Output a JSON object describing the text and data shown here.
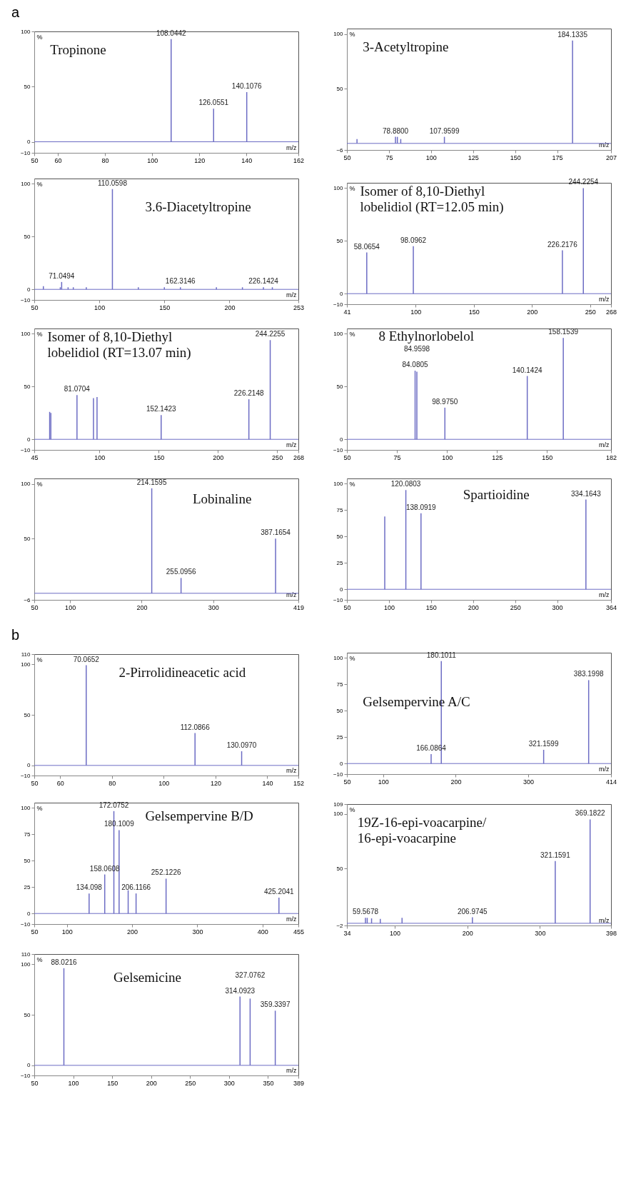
{
  "chart_data": [
    {
      "type": "bar",
      "title": "Tropinone",
      "xlabel": "m/z",
      "ylabel": "%",
      "xlim": [
        50,
        162
      ],
      "xticks": [
        50,
        60,
        80,
        100,
        120,
        140,
        162
      ],
      "ylim": [
        -10,
        100
      ],
      "yticks": [
        -10,
        0,
        50,
        100
      ],
      "x": [
        108.0442,
        126.0551,
        140.1076
      ],
      "series": [
        {
          "color": "#6c6cc4",
          "values": [
            93,
            30,
            45
          ]
        }
      ],
      "ref_lines": [
        {
          "axis": "y",
          "value": 0,
          "color": "#6c6cc4"
        }
      ],
      "annotations": [
        "a",
        {
          "text": "108.0442",
          "x": 108.0442,
          "y": 93
        },
        {
          "text": "126.0551",
          "x": 126.0551,
          "y": 30
        },
        {
          "text": "140.1076",
          "x": 140.1076,
          "y": 45
        }
      ]
    },
    {
      "type": "bar",
      "title": "3-Acetyltropine",
      "xlabel": "m/z",
      "ylabel": "%",
      "xlim": [
        50,
        207
      ],
      "xticks": [
        50,
        75,
        100,
        125,
        150,
        175,
        207
      ],
      "ylim": [
        -6,
        105
      ],
      "yticks": [
        -6,
        50,
        100
      ],
      "x": [
        56,
        78.88,
        80,
        82,
        107.9599,
        184.1335
      ],
      "series": [
        {
          "color": "#6c6cc4",
          "values": [
            4,
            6,
            6,
            4,
            6,
            94
          ]
        }
      ],
      "ref_lines": [
        {
          "axis": "y",
          "value": 0,
          "color": "#6c6cc4"
        }
      ],
      "annotations": [
        {
          "text": "78.8800",
          "x": 78.88,
          "y": 6
        },
        {
          "text": "107.9599",
          "x": 107.9599,
          "y": 6
        },
        {
          "text": "184.1335",
          "x": 184.1335,
          "y": 94
        }
      ]
    },
    {
      "type": "bar",
      "title": "3.6-Diacetyltropine",
      "xlabel": "m/z",
      "ylabel": "%",
      "xlim": [
        50,
        253
      ],
      "xticks": [
        50,
        100,
        150,
        200,
        253
      ],
      "ylim": [
        -10,
        105
      ],
      "yticks": [
        -10,
        0,
        50,
        100
      ],
      "x": [
        57,
        70,
        71.0494,
        76,
        80,
        90,
        110.0598,
        130,
        150,
        162.3146,
        190,
        210,
        226.1424,
        233
      ],
      "series": [
        {
          "color": "#6c6cc4",
          "values": [
            3,
            2,
            7,
            2,
            2,
            2,
            95,
            2,
            2,
            2,
            2,
            2,
            2,
            2
          ]
        }
      ],
      "ref_lines": [
        {
          "axis": "y",
          "value": 0,
          "color": "#6c6cc4"
        }
      ],
      "annotations": [
        {
          "text": "71.0494",
          "x": 71.0494,
          "y": 7
        },
        {
          "text": "110.0598",
          "x": 110.0598,
          "y": 95
        },
        {
          "text": "162.3146",
          "x": 162.3146,
          "y": 2
        },
        {
          "text": "226.1424",
          "x": 226.1424,
          "y": 2
        }
      ]
    },
    {
      "type": "bar",
      "title": "Isomer of 8,10-Diethyl lobelidiol (RT=12.05 min)",
      "xlabel": "m/z",
      "ylabel": "%",
      "xlim": [
        41,
        268
      ],
      "xticks": [
        41,
        100,
        150,
        200,
        250,
        268
      ],
      "ylim": [
        -10,
        105
      ],
      "yticks": [
        -10,
        0,
        50,
        100
      ],
      "x": [
        58.0654,
        98.0962,
        226.2176,
        244.2254
      ],
      "series": [
        {
          "color": "#6c6cc4",
          "values": [
            39,
            45,
            41,
            100
          ]
        }
      ],
      "ref_lines": [
        {
          "axis": "y",
          "value": 0,
          "color": "#6c6cc4"
        }
      ],
      "annotations": [
        {
          "text": "58.0654",
          "x": 58.0654,
          "y": 39
        },
        {
          "text": "98.0962",
          "x": 98.0962,
          "y": 45
        },
        {
          "text": "226.2176",
          "x": 226.2176,
          "y": 41
        },
        {
          "text": "244.2254",
          "x": 244.2254,
          "y": 100
        }
      ]
    },
    {
      "type": "bar",
      "title": "Isomer of 8,10-Diethyl lobelidiol (RT=13.07 min)",
      "xlabel": "m/z",
      "ylabel": "%",
      "xlim": [
        45,
        268
      ],
      "xticks": [
        45,
        100,
        150,
        200,
        250,
        268
      ],
      "ylim": [
        -10,
        105
      ],
      "yticks": [
        -10,
        0,
        50,
        100
      ],
      "x": [
        58,
        59,
        81.0704,
        95,
        98,
        152.1423,
        226.2148,
        244.2255
      ],
      "series": [
        {
          "color": "#6c6cc4",
          "values": [
            26,
            25,
            42,
            39,
            40,
            23,
            38,
            94
          ]
        }
      ],
      "ref_lines": [
        {
          "axis": "y",
          "value": 0,
          "color": "#6c6cc4"
        }
      ],
      "annotations": [
        {
          "text": "81.0704",
          "x": 81.0704,
          "y": 42
        },
        {
          "text": "152.1423",
          "x": 152.1423,
          "y": 23
        },
        {
          "text": "226.2148",
          "x": 226.2148,
          "y": 38
        },
        {
          "text": "244.2255",
          "x": 244.2255,
          "y": 94
        }
      ]
    },
    {
      "type": "bar",
      "title": "8 Ethylnorlobelol",
      "xlabel": "m/z",
      "ylabel": "%",
      "xlim": [
        50,
        182
      ],
      "xticks": [
        50,
        75,
        100,
        125,
        150,
        182
      ],
      "ylim": [
        -10,
        105
      ],
      "yticks": [
        -10,
        0,
        50,
        100
      ],
      "x": [
        84.0805,
        84.9598,
        98.975,
        140.1424,
        158.1539
      ],
      "series": [
        {
          "color": "#6c6cc4",
          "values": [
            65,
            64,
            30,
            60,
            96
          ]
        }
      ],
      "ref_lines": [
        {
          "axis": "y",
          "value": 0,
          "color": "#6c6cc4"
        }
      ],
      "annotations": [
        {
          "text": "84.0805",
          "x": 84.0805,
          "y": 65
        },
        {
          "text": "84.9598",
          "x": 84.9598,
          "y": 64
        },
        {
          "text": "98.9750",
          "x": 98.975,
          "y": 30
        },
        {
          "text": "140.1424",
          "x": 140.1424,
          "y": 60
        },
        {
          "text": "158.1539",
          "x": 158.1539,
          "y": 96
        }
      ]
    },
    {
      "type": "bar",
      "title": "Lobinaline",
      "xlabel": "m/z",
      "ylabel": "%",
      "xlim": [
        50,
        419
      ],
      "xticks": [
        50,
        100,
        200,
        300,
        419
      ],
      "ylim": [
        -6,
        105
      ],
      "yticks": [
        -6,
        50,
        100
      ],
      "x": [
        214.1595,
        255.0956,
        387.1654
      ],
      "series": [
        {
          "color": "#6c6cc4",
          "values": [
            96,
            14,
            50
          ]
        }
      ],
      "ref_lines": [
        {
          "axis": "y",
          "value": 0,
          "color": "#6c6cc4"
        }
      ],
      "annotations": [
        {
          "text": "214.1595",
          "x": 214.1595,
          "y": 96
        },
        {
          "text": "255.0956",
          "x": 255.0956,
          "y": 14
        },
        {
          "text": "387.1654",
          "x": 387.1654,
          "y": 50
        }
      ]
    },
    {
      "type": "bar",
      "title": "Spartioidine",
      "xlabel": "m/z",
      "ylabel": "%",
      "xlim": [
        50,
        364
      ],
      "xticks": [
        50,
        100,
        150,
        200,
        250,
        300,
        364
      ],
      "ylim": [
        -10,
        105
      ],
      "yticks": [
        -10,
        0,
        25,
        50,
        75,
        100
      ],
      "x": [
        95,
        120.0803,
        138.0919,
        334.1643
      ],
      "series": [
        {
          "color": "#6c6cc4",
          "values": [
            69,
            94,
            72,
            85
          ]
        }
      ],
      "ref_lines": [
        {
          "axis": "y",
          "value": 0,
          "color": "#6c6cc4"
        }
      ],
      "annotations": [
        {
          "text": "120.0803",
          "x": 120.0803,
          "y": 94
        },
        {
          "text": "138.0919",
          "x": 138.0919,
          "y": 72
        },
        {
          "text": "334.1643",
          "x": 334.1643,
          "y": 85
        }
      ]
    },
    {
      "type": "bar",
      "title": "2-Pirrolidineacetic acid",
      "xlabel": "m/z",
      "ylabel": "%",
      "xlim": [
        50,
        152
      ],
      "xticks": [
        50,
        60,
        80,
        100,
        120,
        140,
        152
      ],
      "ylim": [
        -10,
        110
      ],
      "yticks": [
        -10,
        0,
        50,
        100,
        110
      ],
      "x": [
        70.0652,
        112.0866,
        130.097
      ],
      "series": [
        {
          "color": "#6c6cc4",
          "values": [
            99,
            32,
            14
          ]
        }
      ],
      "ref_lines": [
        {
          "axis": "y",
          "value": 0,
          "color": "#6c6cc4"
        }
      ],
      "annotations": [
        "b",
        {
          "text": "70.0652",
          "x": 70.0652,
          "y": 99
        },
        {
          "text": "112.0866",
          "x": 112.0866,
          "y": 32
        },
        {
          "text": "130.0970",
          "x": 130.097,
          "y": 14
        }
      ]
    },
    {
      "type": "bar",
      "title": "Gelsempervine A/C",
      "xlabel": "m/z",
      "ylabel": "%",
      "xlim": [
        50,
        414
      ],
      "xticks": [
        50,
        100,
        200,
        300,
        414
      ],
      "ylim": [
        -10,
        105
      ],
      "yticks": [
        -10,
        0,
        25,
        50,
        75,
        100
      ],
      "x": [
        166.0864,
        180.1011,
        321.1599,
        383.1998
      ],
      "series": [
        {
          "color": "#6c6cc4",
          "values": [
            9,
            97,
            13,
            79
          ]
        }
      ],
      "ref_lines": [
        {
          "axis": "y",
          "value": 0,
          "color": "#6c6cc4"
        }
      ],
      "annotations": [
        {
          "text": "166.0864",
          "x": 166.0864,
          "y": 9
        },
        {
          "text": "180.1011",
          "x": 180.1011,
          "y": 97
        },
        {
          "text": "321.1599",
          "x": 321.1599,
          "y": 13
        },
        {
          "text": "383.1998",
          "x": 383.1998,
          "y": 79
        }
      ]
    },
    {
      "type": "bar",
      "title": "Gelsempervine B/D",
      "xlabel": "m/z",
      "ylabel": "%",
      "xlim": [
        50,
        455
      ],
      "xticks": [
        50,
        100,
        200,
        300,
        400,
        455
      ],
      "ylim": [
        -10,
        105
      ],
      "yticks": [
        -10,
        0,
        25,
        50,
        75,
        100
      ],
      "x": [
        134.098,
        158.0608,
        172.0752,
        180.1009,
        194,
        206.1166,
        252.1226,
        425.2041
      ],
      "series": [
        {
          "color": "#6c6cc4",
          "values": [
            19,
            37,
            97,
            79,
            22,
            19,
            33,
            15
          ]
        }
      ],
      "ref_lines": [
        {
          "axis": "y",
          "value": 0,
          "color": "#6c6cc4"
        }
      ],
      "annotations": [
        {
          "text": "134.098",
          "x": 134.098,
          "y": 19
        },
        {
          "text": "158.0608",
          "x": 158.0608,
          "y": 37
        },
        {
          "text": "172.0752",
          "x": 172.0752,
          "y": 97
        },
        {
          "text": "180.1009",
          "x": 180.1009,
          "y": 79
        },
        {
          "text": "206.1166",
          "x": 206.1166,
          "y": 19
        },
        {
          "text": "252.1226",
          "x": 252.1226,
          "y": 33
        },
        {
          "text": "425.2041",
          "x": 425.2041,
          "y": 15
        }
      ]
    },
    {
      "type": "bar",
      "title": "19Z-16-epi-voacarpine/16-epi-voacarpine",
      "xlabel": "m/z",
      "ylabel": "%",
      "xlim": [
        34,
        398
      ],
      "xticks": [
        34,
        100,
        200,
        300,
        398
      ],
      "ylim": [
        -2,
        109
      ],
      "yticks": [
        -2,
        50,
        100,
        109
      ],
      "x": [
        59.5678,
        62,
        68,
        80,
        110,
        206.9745,
        321.1591,
        369.1822
      ],
      "series": [
        {
          "color": "#6c6cc4",
          "values": [
            5,
            5,
            4.5,
            4,
            5,
            5.5,
            57,
            95
          ]
        }
      ],
      "ref_lines": [
        {
          "axis": "y",
          "value": 0,
          "color": "#6c6cc4"
        }
      ],
      "annotations": [
        {
          "text": "59.5678",
          "x": 59.5678,
          "y": 5
        },
        {
          "text": "206.9745",
          "x": 206.9745,
          "y": 5.5
        },
        {
          "text": "321.1591",
          "x": 321.1591,
          "y": 57
        },
        {
          "text": "369.1822",
          "x": 369.1822,
          "y": 95
        }
      ]
    },
    {
      "type": "bar",
      "title": "Gelsemicine",
      "xlabel": "m/z",
      "ylabel": "%",
      "xlim": [
        50,
        389
      ],
      "xticks": [
        50,
        100,
        150,
        200,
        250,
        300,
        350,
        389
      ],
      "ylim": [
        -10,
        110
      ],
      "yticks": [
        -10,
        0,
        50,
        100,
        110
      ],
      "x": [
        88.0216,
        314.0923,
        327.0762,
        359.3397
      ],
      "series": [
        {
          "color": "#6c6cc4",
          "values": [
            96,
            68,
            66,
            54
          ]
        }
      ],
      "ref_lines": [
        {
          "axis": "y",
          "value": 0,
          "color": "#6c6cc4"
        }
      ],
      "annotations": [
        {
          "text": "88.0216",
          "x": 88.0216,
          "y": 96
        },
        {
          "text": "314.0923",
          "x": 314.0923,
          "y": 68
        },
        {
          "text": "327.0762",
          "x": 327.0762,
          "y": 66
        },
        {
          "text": "359.3397",
          "x": 359.3397,
          "y": 54
        }
      ]
    }
  ]
}
